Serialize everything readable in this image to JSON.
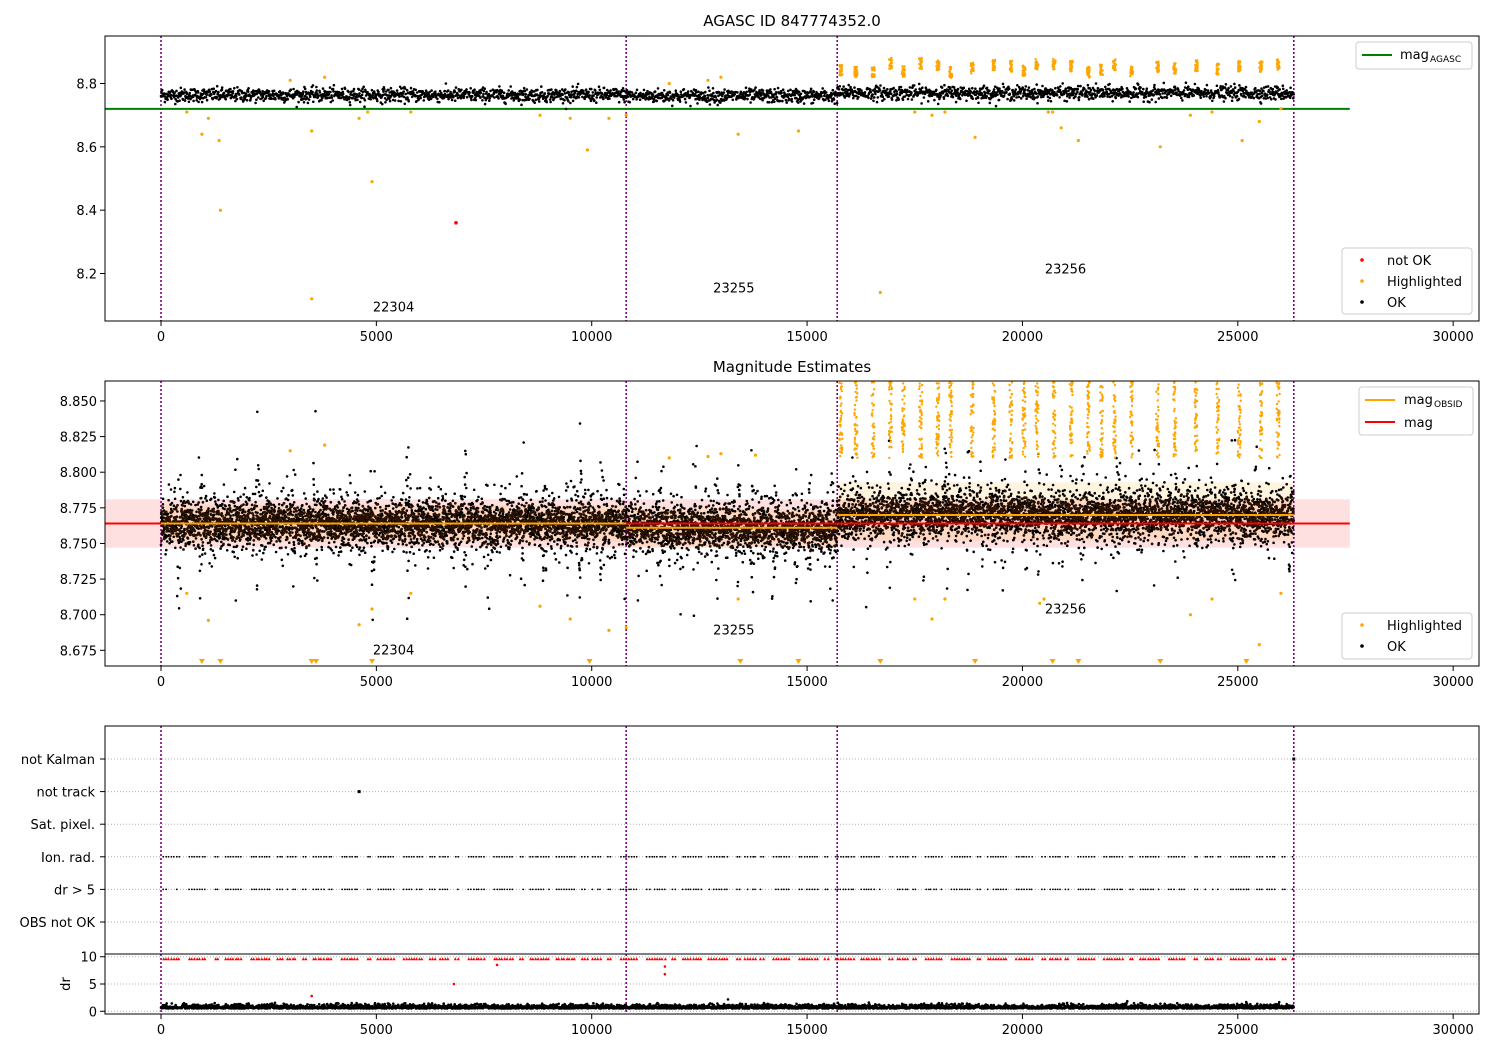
{
  "chart_data": [
    {
      "type": "scatter",
      "title": "AGASC ID 847774352.0",
      "xlim": [
        -1300,
        30600
      ],
      "ylim": [
        8.05,
        8.95
      ],
      "x_ticks": [
        0,
        5000,
        10000,
        15000,
        20000,
        25000,
        30000
      ],
      "x_tick_labels": [
        "0",
        "5000",
        "10000",
        "15000",
        "20000",
        "25000",
        "30000"
      ],
      "y_ticks": [
        8.2,
        8.4,
        8.6,
        8.8
      ],
      "y_tick_labels": [
        "8.2",
        "8.4",
        "8.6",
        "8.8"
      ],
      "obsid_boundaries": [
        0,
        10800,
        15700,
        26300
      ],
      "obsid_labels": [
        {
          "text": "22304",
          "x": 5400,
          "y": 8.08
        },
        {
          "text": "23255",
          "x": 13300,
          "y": 8.14
        },
        {
          "text": "23256",
          "x": 21000,
          "y": 8.2
        }
      ],
      "lines": [
        {
          "name": "mag_AGASC",
          "label": "mag",
          "label_sub": "AGASC",
          "y": 8.72,
          "x": [
            -1300,
            27600
          ],
          "color": "#008000"
        }
      ],
      "series": [
        {
          "name": "not OK",
          "color": "#ff0000",
          "points": [
            [
              6850,
              8.36
            ]
          ]
        },
        {
          "name": "Highlighted",
          "color": "#ffa500",
          "points": [
            [
              600,
              8.71
            ],
            [
              950,
              8.64
            ],
            [
              1100,
              8.69
            ],
            [
              1350,
              8.62
            ],
            [
              1380,
              8.4
            ],
            [
              3000,
              8.81
            ],
            [
              3500,
              8.65
            ],
            [
              3500,
              8.12
            ],
            [
              3800,
              8.82
            ],
            [
              4600,
              8.69
            ],
            [
              4900,
              8.49
            ],
            [
              4800,
              8.71
            ],
            [
              5800,
              8.71
            ],
            [
              8800,
              8.7
            ],
            [
              9500,
              8.69
            ],
            [
              9900,
              8.59
            ],
            [
              10400,
              8.69
            ],
            [
              10800,
              8.7
            ],
            [
              11800,
              8.8
            ],
            [
              12700,
              8.81
            ],
            [
              13000,
              8.82
            ],
            [
              13400,
              8.64
            ],
            [
              14800,
              8.65
            ],
            [
              16700,
              8.14
            ],
            [
              17500,
              8.71
            ],
            [
              17900,
              8.7
            ],
            [
              18200,
              8.71
            ],
            [
              18900,
              8.63
            ],
            [
              20600,
              8.71
            ],
            [
              20700,
              8.71
            ],
            [
              20900,
              8.66
            ],
            [
              21300,
              8.62
            ],
            [
              23200,
              8.6
            ],
            [
              23900,
              8.7
            ],
            [
              24400,
              8.71
            ],
            [
              25100,
              8.62
            ],
            [
              25500,
              8.68
            ],
            [
              26000,
              8.72
            ]
          ]
        },
        {
          "name": "OK",
          "color": "#000000"
        }
      ],
      "legend_upper": {
        "placement": "upper-right",
        "entries": [
          {
            "label": "mag",
            "sub": "AGASC",
            "color": "#008000"
          }
        ]
      },
      "legend_lower": {
        "placement": "lower-right",
        "entries": [
          {
            "label": "not OK",
            "color": "#ff0000"
          },
          {
            "label": "Highlighted",
            "color": "#ffa500"
          },
          {
            "label": "OK",
            "color": "#000000"
          }
        ]
      }
    },
    {
      "type": "scatter",
      "title": "Magnitude Estimates",
      "xlim": [
        -1300,
        30600
      ],
      "ylim": [
        8.664,
        8.864
      ],
      "x_ticks": [
        0,
        5000,
        10000,
        15000,
        20000,
        25000,
        30000
      ],
      "x_tick_labels": [
        "0",
        "5000",
        "10000",
        "15000",
        "20000",
        "25000",
        "30000"
      ],
      "y_ticks": [
        8.675,
        8.7,
        8.725,
        8.75,
        8.775,
        8.8,
        8.825,
        8.85
      ],
      "y_tick_labels": [
        "8.675",
        "8.700",
        "8.725",
        "8.750",
        "8.775",
        "8.800",
        "8.825",
        "8.850"
      ],
      "obsid_boundaries": [
        0,
        10800,
        15700,
        26300
      ],
      "obsid_labels": [
        {
          "text": "22304",
          "x": 5400,
          "y": 8.672
        },
        {
          "text": "23255",
          "x": 13300,
          "y": 8.686
        },
        {
          "text": "23256",
          "x": 21000,
          "y": 8.701
        }
      ],
      "mag": {
        "value": 8.764,
        "band": [
          8.747,
          8.781
        ],
        "x": [
          -1300,
          27600
        ],
        "color": "#ff0000",
        "band_color": "#ffe0e0"
      },
      "mag_obsid": [
        {
          "x": [
            0,
            10800
          ],
          "y": 8.764,
          "band": [
            8.751,
            8.777
          ]
        },
        {
          "x": [
            10800,
            15700
          ],
          "y": 8.761,
          "band": [
            8.748,
            8.774
          ]
        },
        {
          "x": [
            15700,
            26300
          ],
          "y": 8.77,
          "band": [
            8.752,
            8.793
          ]
        }
      ],
      "mag_obsid_color": "#ffa500",
      "highlighted_low_markers_x": [
        950,
        1380,
        3500,
        3600,
        4900,
        9950,
        13450,
        14800,
        16700,
        18900,
        20700,
        21300,
        23200,
        25200
      ],
      "series": [
        {
          "name": "Highlighted",
          "color": "#ffa500",
          "points": [
            [
              600,
              8.715
            ],
            [
              1100,
              8.696
            ],
            [
              3000,
              8.815
            ],
            [
              3800,
              8.819
            ],
            [
              4600,
              8.693
            ],
            [
              4900,
              8.704
            ],
            [
              5800,
              8.715
            ],
            [
              8800,
              8.706
            ],
            [
              9500,
              8.697
            ],
            [
              10400,
              8.689
            ],
            [
              10800,
              8.691
            ],
            [
              11800,
              8.81
            ],
            [
              12700,
              8.811
            ],
            [
              13000,
              8.813
            ],
            [
              13400,
              8.711
            ],
            [
              13800,
              8.812
            ],
            [
              17500,
              8.711
            ],
            [
              17900,
              8.697
            ],
            [
              18200,
              8.711
            ],
            [
              20400,
              8.708
            ],
            [
              20500,
              8.711
            ],
            [
              23900,
              8.7
            ],
            [
              24400,
              8.711
            ],
            [
              25500,
              8.679
            ],
            [
              26000,
              8.715
            ]
          ]
        },
        {
          "name": "OK",
          "color": "#000000"
        }
      ],
      "legend_upper": {
        "placement": "upper-right",
        "entries": [
          {
            "label": "mag",
            "sub": "OBSID",
            "color": "#ffa500"
          },
          {
            "label": "mag",
            "color": "#ff0000"
          }
        ]
      },
      "legend_lower": {
        "placement": "lower-right",
        "entries": [
          {
            "label": "Highlighted",
            "color": "#ffa500"
          },
          {
            "label": "OK",
            "color": "#000000"
          }
        ]
      }
    },
    {
      "type": "scatter",
      "xlim": [
        -1300,
        30600
      ],
      "flag_rows": [
        "not Kalman",
        "not track",
        "Sat. pixel.",
        "Ion. rad.",
        "dr > 5",
        "OBS not OK"
      ],
      "flag_points": [
        {
          "row": "not track",
          "x": 4600
        },
        {
          "row": "not Kalman",
          "x": 26300
        }
      ],
      "obsid_boundaries": [
        0,
        10800,
        15700,
        26300
      ],
      "series": [
        {
          "name": "flag",
          "color": "#000000"
        }
      ]
    },
    {
      "type": "scatter",
      "xlim": [
        -1300,
        30600
      ],
      "ylim": [
        -0.5,
        10.5
      ],
      "ylabel": "dr",
      "x_ticks": [
        0,
        5000,
        10000,
        15000,
        20000,
        25000,
        30000
      ],
      "x_tick_labels": [
        "0",
        "5000",
        "10000",
        "15000",
        "20000",
        "25000",
        "30000"
      ],
      "y_ticks": [
        0,
        5,
        10
      ],
      "y_tick_labels": [
        "0",
        "5",
        "10"
      ],
      "obsid_boundaries": [
        0,
        10800,
        15700,
        26300
      ],
      "series": [
        {
          "name": "dr clipped",
          "color": "#ff0000",
          "marker": "triangle",
          "y": 9.6
        },
        {
          "name": "dr",
          "color": "#000000"
        },
        {
          "name": "dr outliers",
          "color": "#ff0000",
          "points": [
            [
              3500,
              2.8
            ],
            [
              6800,
              5.0
            ],
            [
              7800,
              8.5
            ],
            [
              11700,
              8.2
            ],
            [
              11700,
              6.8
            ]
          ]
        }
      ]
    }
  ]
}
